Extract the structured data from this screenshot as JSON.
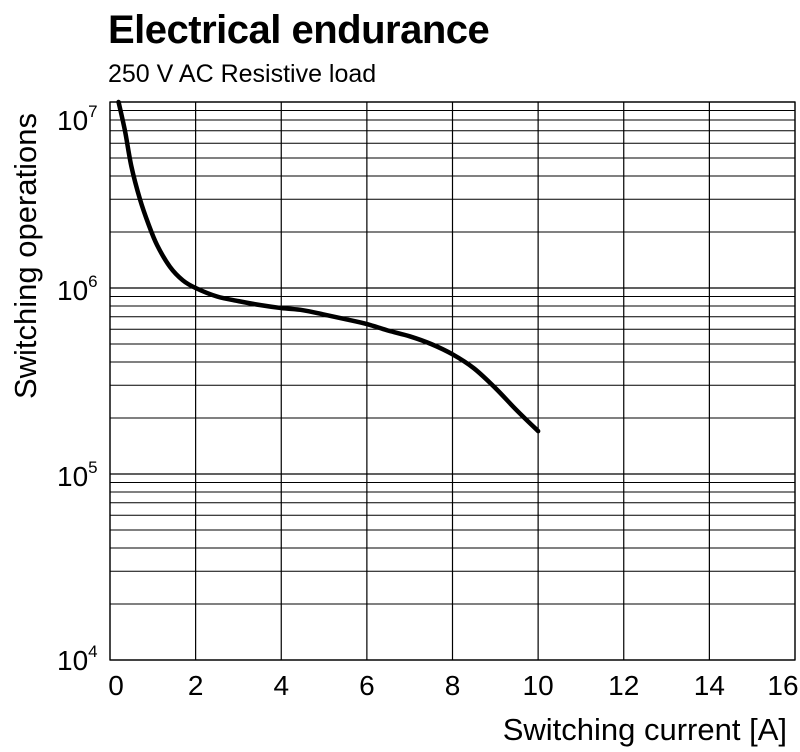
{
  "chart_data": {
    "type": "line",
    "title": "Electrical endurance",
    "subtitle": "250 V AC Resistive load",
    "xlabel": "Switching current [A]",
    "ylabel": "Switching operations",
    "xlim": [
      0,
      16
    ],
    "ylim": [
      10000,
      10000000
    ],
    "y_scale": "log",
    "grid": true,
    "x_ticks": [
      "0",
      "2",
      "4",
      "6",
      "8",
      "10",
      "12",
      "14",
      "16"
    ],
    "x_tick_values": [
      0,
      2,
      4,
      6,
      8,
      10,
      12,
      14,
      16
    ],
    "y_ticks": [
      {
        "base": "10",
        "exp": "4",
        "value": 10000
      },
      {
        "base": "10",
        "exp": "5",
        "value": 100000
      },
      {
        "base": "10",
        "exp": "6",
        "value": 1000000
      },
      {
        "base": "10",
        "exp": "7",
        "value": 10000000
      }
    ],
    "series": [
      {
        "x": [
          0.2,
          0.35,
          0.5,
          0.7,
          0.9,
          1.1,
          1.4,
          1.7,
          2,
          2.5,
          3,
          3.5,
          4,
          4.5,
          5,
          5.5,
          6,
          6.5,
          7,
          7.5,
          8,
          8.5,
          9,
          9.5,
          10
        ],
        "y": [
          10000000,
          7000000,
          4500000,
          3000000,
          2200000,
          1700000,
          1300000,
          1100000,
          1000000,
          900000,
          850000,
          810000,
          780000,
          760000,
          720000,
          680000,
          640000,
          590000,
          550000,
          500000,
          440000,
          370000,
          290000,
          220000,
          170000
        ],
        "color": "#000000"
      }
    ]
  }
}
